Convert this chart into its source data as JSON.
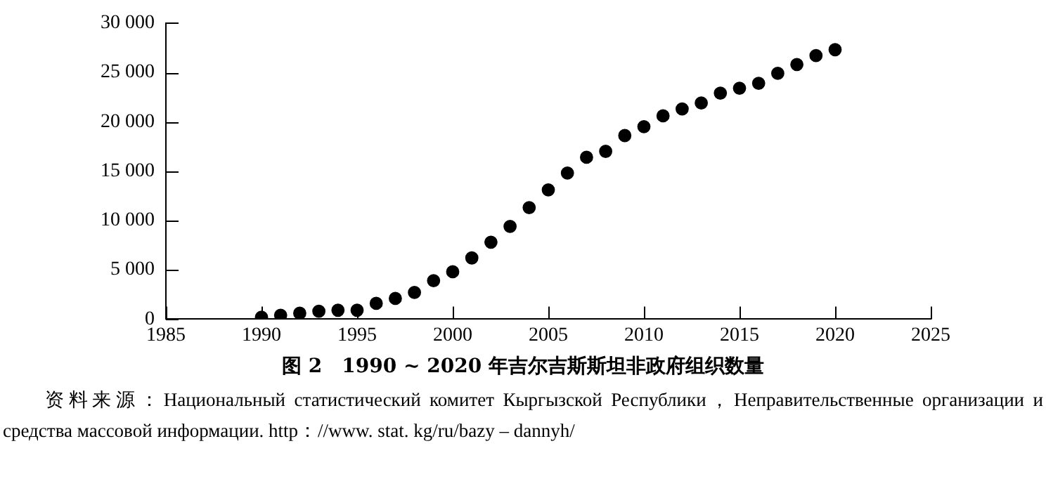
{
  "chart_data": {
    "type": "scatter",
    "title": "图 2　1990 ~ 2020 年吉尔吉斯斯坦非政府组织数量",
    "annotations": [
      "资料来源：Национальный статистический комитет Кыргызской Республики，Неправительственные организации и средства массовой информации. http：//www. stat. kg/ru/bazy – dannyh/"
    ],
    "x": [
      1990,
      1991,
      1992,
      1993,
      1994,
      1995,
      1996,
      1997,
      1998,
      1999,
      2000,
      2001,
      2002,
      2003,
      2004,
      2005,
      2006,
      2007,
      2008,
      2009,
      2010,
      2011,
      2012,
      2013,
      2014,
      2015,
      2016,
      2017,
      2018,
      2019,
      2020
    ],
    "series": [
      {
        "color": "#000000",
        "values": [
          200,
          400,
          600,
          800,
          900,
          900,
          1600,
          2100,
          2700,
          3900,
          4800,
          6200,
          7800,
          9400,
          11300,
          13100,
          14800,
          16400,
          17000,
          18600,
          19500,
          20600,
          21300,
          21900,
          22900,
          23400,
          23900,
          24900,
          25800,
          26700,
          27300
        ]
      }
    ],
    "xlim": [
      1985,
      2025
    ],
    "xticks": [
      1985,
      1990,
      1995,
      2000,
      2005,
      2010,
      2015,
      2020,
      2025
    ],
    "ylim": [
      0,
      30000
    ],
    "yticks": [
      0,
      {
        "value": 5000,
        "label": "5 000"
      },
      {
        "value": 10000,
        "label": "10 000"
      },
      {
        "value": 15000,
        "label": "15 000"
      },
      {
        "value": 20000,
        "label": "20 000"
      },
      {
        "value": 25000,
        "label": "25 000"
      },
      {
        "value": 30000,
        "label": "30 000"
      }
    ],
    "grid": false,
    "legend": false,
    "marker": "circle"
  }
}
